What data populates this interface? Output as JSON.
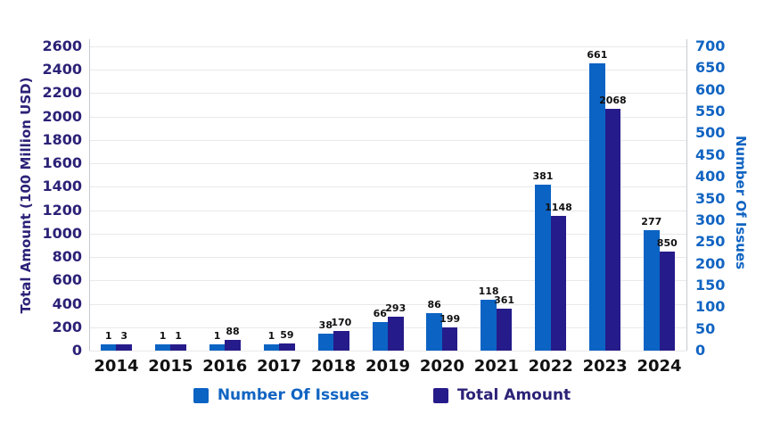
{
  "chart_data": {
    "type": "bar",
    "title": "",
    "categories": [
      "2014",
      "2015",
      "2016",
      "2017",
      "2018",
      "2019",
      "2020",
      "2021",
      "2022",
      "2023",
      "2024"
    ],
    "series": [
      {
        "name": "Number Of Issues",
        "axis": "right",
        "color": "#0b63c4",
        "values": [
          1,
          1,
          1,
          1,
          38,
          66,
          86,
          118,
          381,
          661,
          277
        ]
      },
      {
        "name": "Total Amount",
        "axis": "left",
        "color": "#261b8a",
        "values": [
          3,
          1,
          88,
          59,
          170,
          293,
          199,
          361,
          1148,
          2068,
          850
        ]
      }
    ],
    "left_axis": {
      "title": "Total Amount (100 Million USD)",
      "min": 0,
      "max": 2600,
      "step": 200,
      "color": "#2b2277"
    },
    "right_axis": {
      "title": "Number Of Issues",
      "min": 0,
      "max": 700,
      "step": 50,
      "color": "#1164c2"
    },
    "value_labels": true,
    "value_label_color": "#111111",
    "x_label_color": "#111111",
    "grid": true,
    "grid_color": "#e9e9e9",
    "axis_line_color": "#c5cad1",
    "legend_position": "bottom"
  }
}
